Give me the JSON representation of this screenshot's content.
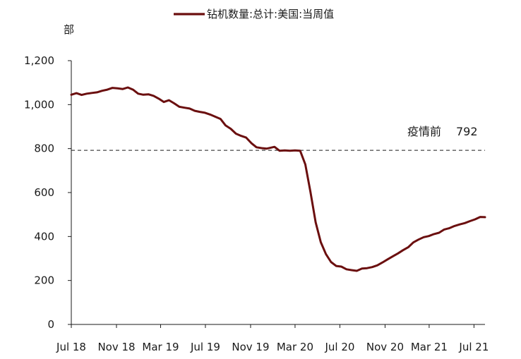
{
  "chart_data": {
    "type": "line",
    "title": "",
    "ylabel": "部",
    "xlabel": "",
    "ylim": [
      0,
      1200
    ],
    "yticks": [
      0,
      200,
      400,
      600,
      800,
      1000,
      1200
    ],
    "ytick_labels": [
      "0",
      "200",
      "400",
      "600",
      "800",
      "1,000",
      "1,200"
    ],
    "x_range": [
      "2018-07-01",
      "2021-07-31"
    ],
    "xtick_labels": [
      {
        "date": "2018-07-01",
        "label": "Jul 18"
      },
      {
        "date": "2018-11-01",
        "label": "Nov 18"
      },
      {
        "date": "2019-03-01",
        "label": "Mar 19"
      },
      {
        "date": "2019-07-01",
        "label": "Jul 19"
      },
      {
        "date": "2019-11-01",
        "label": "Nov 19"
      },
      {
        "date": "2020-03-01",
        "label": "Mar 20"
      },
      {
        "date": "2020-07-01",
        "label": "Jul 20"
      },
      {
        "date": "2020-11-01",
        "label": "Nov 20"
      },
      {
        "date": "2021-03-01",
        "label": "Mar 21"
      },
      {
        "date": "2021-07-01",
        "label": "Jul 21"
      }
    ],
    "grid": false,
    "legend_position": "top-center",
    "series": [
      {
        "name": "钻机数量:总计:美国:当周值",
        "color": "#6b0f0f",
        "points": [
          [
            "2018-07-01",
            1045
          ],
          [
            "2018-07-15",
            1052
          ],
          [
            "2018-07-29",
            1044
          ],
          [
            "2018-08-12",
            1050
          ],
          [
            "2018-08-26",
            1053
          ],
          [
            "2018-09-09",
            1056
          ],
          [
            "2018-09-23",
            1063
          ],
          [
            "2018-10-07",
            1068
          ],
          [
            "2018-10-21",
            1076
          ],
          [
            "2018-11-04",
            1074
          ],
          [
            "2018-11-18",
            1071
          ],
          [
            "2018-12-02",
            1078
          ],
          [
            "2018-12-16",
            1068
          ],
          [
            "2018-12-30",
            1050
          ],
          [
            "2019-01-13",
            1045
          ],
          [
            "2019-01-27",
            1047
          ],
          [
            "2019-02-10",
            1040
          ],
          [
            "2019-02-24",
            1027
          ],
          [
            "2019-03-10",
            1012
          ],
          [
            "2019-03-24",
            1020
          ],
          [
            "2019-04-07",
            1006
          ],
          [
            "2019-04-21",
            990
          ],
          [
            "2019-05-05",
            986
          ],
          [
            "2019-05-19",
            982
          ],
          [
            "2019-06-02",
            972
          ],
          [
            "2019-06-16",
            967
          ],
          [
            "2019-06-30",
            963
          ],
          [
            "2019-07-14",
            955
          ],
          [
            "2019-07-28",
            945
          ],
          [
            "2019-08-11",
            935
          ],
          [
            "2019-08-25",
            905
          ],
          [
            "2019-09-08",
            890
          ],
          [
            "2019-09-22",
            868
          ],
          [
            "2019-10-06",
            858
          ],
          [
            "2019-10-20",
            850
          ],
          [
            "2019-11-03",
            825
          ],
          [
            "2019-11-17",
            806
          ],
          [
            "2019-12-01",
            802
          ],
          [
            "2019-12-15",
            800
          ],
          [
            "2020-01-05",
            808
          ],
          [
            "2020-01-19",
            790
          ],
          [
            "2020-02-02",
            792
          ],
          [
            "2020-02-16",
            790
          ],
          [
            "2020-03-01",
            792
          ],
          [
            "2020-03-15",
            790
          ],
          [
            "2020-03-29",
            728
          ],
          [
            "2020-04-12",
            602
          ],
          [
            "2020-04-26",
            465
          ],
          [
            "2020-05-10",
            374
          ],
          [
            "2020-05-24",
            320
          ],
          [
            "2020-06-07",
            284
          ],
          [
            "2020-06-21",
            266
          ],
          [
            "2020-07-05",
            263
          ],
          [
            "2020-07-19",
            251
          ],
          [
            "2020-08-02",
            247
          ],
          [
            "2020-08-16",
            244
          ],
          [
            "2020-08-30",
            254
          ],
          [
            "2020-09-13",
            256
          ],
          [
            "2020-09-27",
            261
          ],
          [
            "2020-10-11",
            269
          ],
          [
            "2020-10-25",
            282
          ],
          [
            "2020-11-08",
            296
          ],
          [
            "2020-11-22",
            310
          ],
          [
            "2020-12-06",
            323
          ],
          [
            "2020-12-20",
            338
          ],
          [
            "2021-01-03",
            351
          ],
          [
            "2021-01-17",
            373
          ],
          [
            "2021-01-31",
            386
          ],
          [
            "2021-02-14",
            397
          ],
          [
            "2021-02-28",
            402
          ],
          [
            "2021-03-14",
            411
          ],
          [
            "2021-03-28",
            417
          ],
          [
            "2021-04-11",
            432
          ],
          [
            "2021-04-25",
            438
          ],
          [
            "2021-05-09",
            448
          ],
          [
            "2021-05-23",
            455
          ],
          [
            "2021-06-06",
            461
          ],
          [
            "2021-06-20",
            470
          ],
          [
            "2021-07-04",
            478
          ],
          [
            "2021-07-18",
            489
          ],
          [
            "2021-07-31",
            488
          ]
        ]
      }
    ],
    "reference_lines": [
      {
        "y": 792,
        "style": "dashed",
        "label_text": "疫情前",
        "label_value": "792"
      }
    ]
  }
}
